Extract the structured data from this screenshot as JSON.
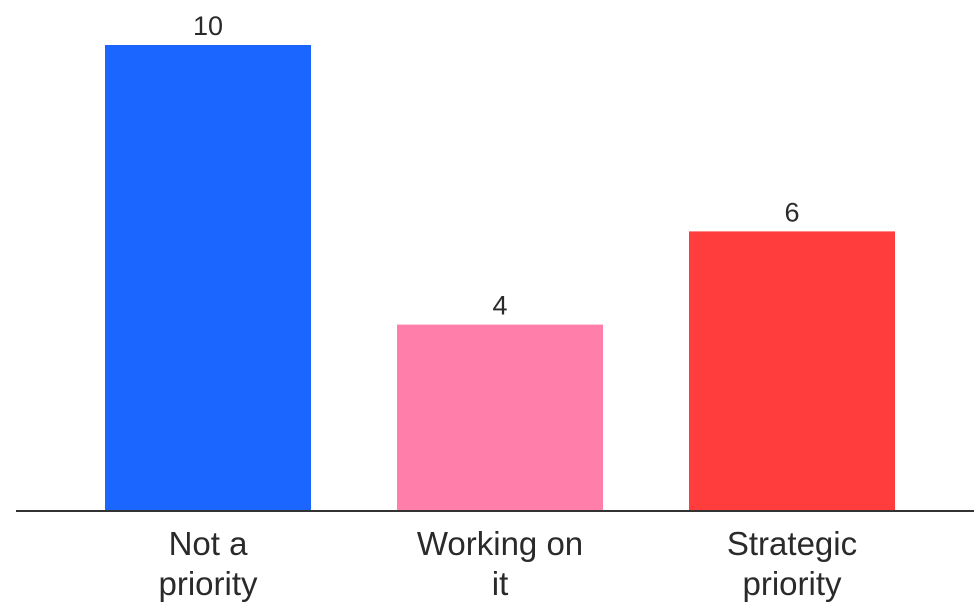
{
  "chart_data": {
    "type": "bar",
    "categories": [
      [
        "Not a",
        "priority"
      ],
      [
        "Working on",
        "it"
      ],
      [
        "Strategic",
        "priority"
      ]
    ],
    "values": [
      10,
      4,
      6
    ],
    "colors": [
      "#1b66ff",
      "#ff7eaa",
      "#ff3d3d"
    ],
    "data_labels": [
      "10",
      "4",
      "6"
    ],
    "title": "",
    "xlabel": "",
    "ylabel": "",
    "ylim": [
      0,
      10
    ],
    "grid": false,
    "legend": "none",
    "axis_color": "#333333"
  }
}
